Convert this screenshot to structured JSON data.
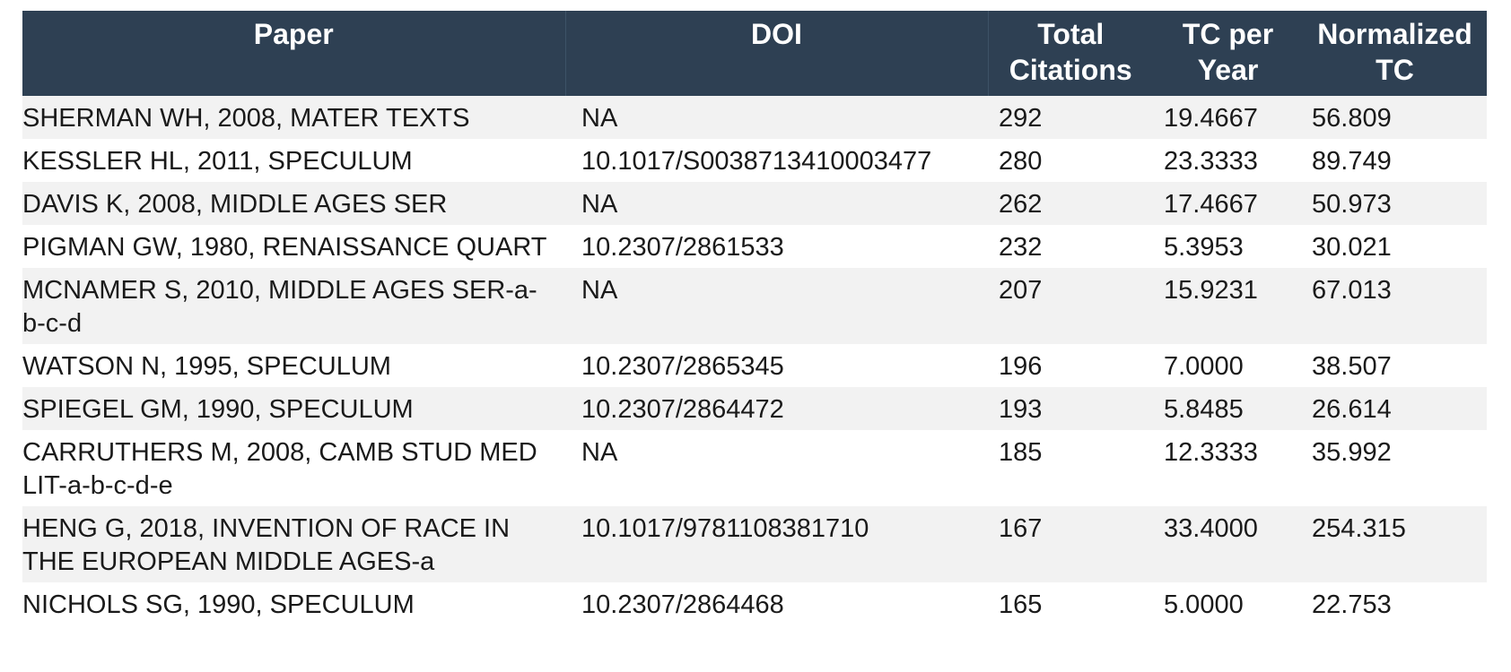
{
  "table": {
    "headers": {
      "paper": "Paper",
      "doi": "DOI",
      "total_citations": "Total Citations",
      "tc_per_year": "TC per Year",
      "normalized_tc": "Normalized TC"
    },
    "rows": [
      {
        "paper": "SHERMAN WH, 2008, MATER TEXTS",
        "doi": "NA",
        "tc": "292",
        "tcy": "19.4667",
        "ntc": "56.809"
      },
      {
        "paper": "KESSLER HL, 2011, SPECULUM",
        "doi": "10.1017/S0038713410003477",
        "tc": "280",
        "tcy": "23.3333",
        "ntc": "89.749"
      },
      {
        "paper": "DAVIS K, 2008, MIDDLE AGES SER",
        "doi": "NA",
        "tc": "262",
        "tcy": "17.4667",
        "ntc": "50.973"
      },
      {
        "paper": "PIGMAN GW, 1980, RENAISSANCE QUART",
        "doi": "10.2307/2861533",
        "tc": "232",
        "tcy": "5.3953",
        "ntc": "30.021"
      },
      {
        "paper": "MCNAMER S, 2010, MIDDLE AGES SER-a-b-c-d",
        "doi": "NA",
        "tc": "207",
        "tcy": "15.9231",
        "ntc": "67.013"
      },
      {
        "paper": "WATSON N, 1995, SPECULUM",
        "doi": "10.2307/2865345",
        "tc": "196",
        "tcy": "7.0000",
        "ntc": "38.507"
      },
      {
        "paper": "SPIEGEL GM, 1990, SPECULUM",
        "doi": "10.2307/2864472",
        "tc": "193",
        "tcy": "5.8485",
        "ntc": "26.614"
      },
      {
        "paper": "CARRUTHERS M, 2008, CAMB STUD MED LIT-a-b-c-d-e",
        "doi": "NA",
        "tc": "185",
        "tcy": "12.3333",
        "ntc": "35.992"
      },
      {
        "paper": "HENG G, 2018, INVENTION OF RACE IN THE EUROPEAN MIDDLE AGES-a",
        "doi": "10.1017/9781108381710",
        "tc": "167",
        "tcy": "33.4000",
        "ntc": "254.315"
      },
      {
        "paper": "NICHOLS SG, 1990, SPECULUM",
        "doi": "10.2307/2864468",
        "tc": "165",
        "tcy": "5.0000",
        "ntc": "22.753"
      }
    ]
  }
}
